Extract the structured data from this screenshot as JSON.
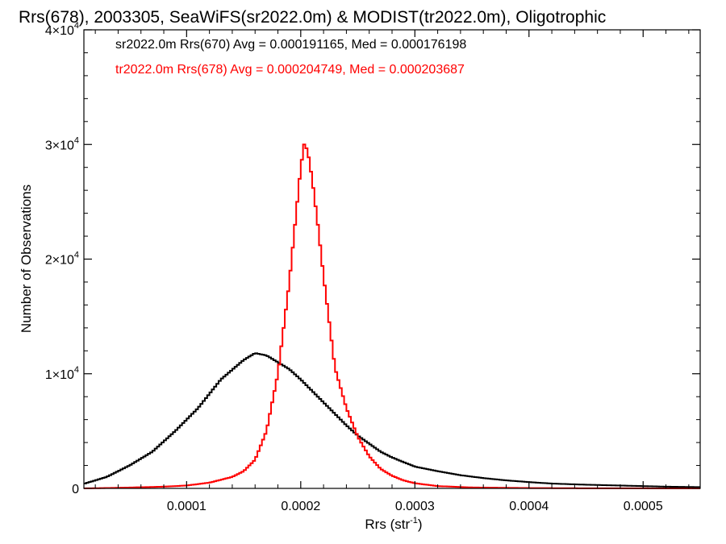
{
  "chart_data": {
    "type": "line",
    "title": "Rrs(678), 2003305, SeaWiFS(sr2022.0m) & MODIST(tr2022.0m), Oligotrophic",
    "xlabel": "Rrs (str",
    "xlabel_sup": "-1",
    "xlabel_close": ")",
    "ylabel": "Number of Observations",
    "xlim": [
      1e-05,
      0.00055
    ],
    "ylim": [
      0,
      40000
    ],
    "xticks": [
      {
        "value": 0.0001,
        "label": "0.0001"
      },
      {
        "value": 0.0002,
        "label": "0.0002"
      },
      {
        "value": 0.0003,
        "label": "0.0003"
      },
      {
        "value": 0.0004,
        "label": "0.0004"
      },
      {
        "value": 0.0005,
        "label": "0.0005"
      }
    ],
    "yticks": [
      {
        "value": 0,
        "label": "0",
        "exp": ""
      },
      {
        "value": 10000,
        "label": "1×10",
        "exp": "4"
      },
      {
        "value": 20000,
        "label": "2×10",
        "exp": "4"
      },
      {
        "value": 30000,
        "label": "3×10",
        "exp": "4"
      },
      {
        "value": 40000,
        "label": "4×10",
        "exp": "4"
      }
    ],
    "legend": [
      {
        "text": "sr2022.0m Rrs(670) Avg = 0.000191165, Med = 0.000176198",
        "color": "#000000"
      },
      {
        "text": "tr2022.0m Rrs(678) Avg = 0.000204749, Med = 0.000203687",
        "color": "#ff0000"
      }
    ],
    "legend_placement": "top-left",
    "grid": false,
    "series": [
      {
        "color": "#000000",
        "points": [
          [
            1e-05,
            400
          ],
          [
            3e-05,
            1000
          ],
          [
            5e-05,
            2000
          ],
          [
            7e-05,
            3200
          ],
          [
            9e-05,
            5000
          ],
          [
            0.00011,
            7000
          ],
          [
            0.00013,
            9500
          ],
          [
            0.00015,
            11200
          ],
          [
            0.00016,
            11800
          ],
          [
            0.00017,
            11600
          ],
          [
            0.00018,
            11000
          ],
          [
            0.00019,
            10400
          ],
          [
            0.0002,
            9500
          ],
          [
            0.00021,
            8500
          ],
          [
            0.00022,
            7500
          ],
          [
            0.00023,
            6500
          ],
          [
            0.00024,
            5500
          ],
          [
            0.00025,
            4600
          ],
          [
            0.00026,
            3900
          ],
          [
            0.00027,
            3200
          ],
          [
            0.00028,
            2700
          ],
          [
            0.00029,
            2300
          ],
          [
            0.0003,
            1900
          ],
          [
            0.00032,
            1500
          ],
          [
            0.00034,
            1150
          ],
          [
            0.00036,
            900
          ],
          [
            0.00038,
            700
          ],
          [
            0.0004,
            550
          ],
          [
            0.00042,
            420
          ],
          [
            0.00045,
            320
          ],
          [
            0.00048,
            250
          ],
          [
            0.0005,
            200
          ],
          [
            0.00052,
            150
          ],
          [
            0.00055,
            110
          ]
        ]
      },
      {
        "color": "#ff0000",
        "points": [
          [
            1e-05,
            0
          ],
          [
            4e-05,
            50
          ],
          [
            8e-05,
            150
          ],
          [
            0.0001,
            250
          ],
          [
            0.00012,
            500
          ],
          [
            0.00014,
            1000
          ],
          [
            0.00015,
            1500
          ],
          [
            0.00016,
            2500
          ],
          [
            0.00017,
            5000
          ],
          [
            0.00018,
            10000
          ],
          [
            0.00019,
            18000
          ],
          [
            0.000195,
            23000
          ],
          [
            0.0002,
            28000
          ],
          [
            0.000203,
            30000
          ],
          [
            0.000206,
            29500
          ],
          [
            0.00021,
            27000
          ],
          [
            0.000215,
            23000
          ],
          [
            0.00022,
            18500
          ],
          [
            0.000225,
            14500
          ],
          [
            0.00023,
            10500
          ],
          [
            0.00024,
            7000
          ],
          [
            0.00025,
            4500
          ],
          [
            0.00026,
            2800
          ],
          [
            0.00027,
            1700
          ],
          [
            0.00028,
            1100
          ],
          [
            0.00029,
            700
          ],
          [
            0.0003,
            450
          ],
          [
            0.00032,
            200
          ],
          [
            0.00035,
            80
          ],
          [
            0.0004,
            30
          ],
          [
            0.00045,
            10
          ],
          [
            0.00055,
            0
          ]
        ]
      }
    ]
  }
}
